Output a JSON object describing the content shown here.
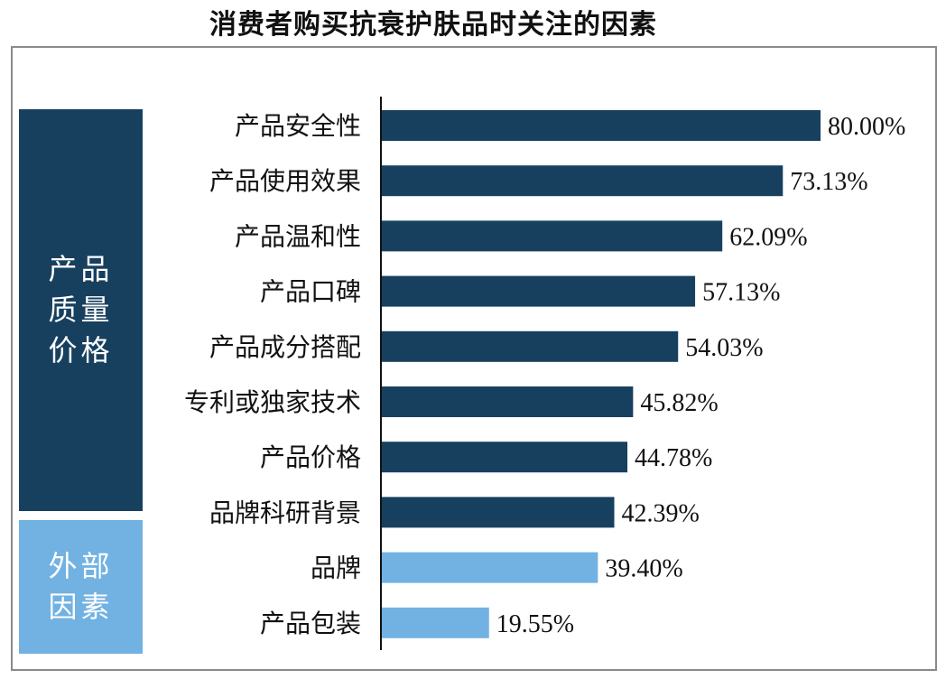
{
  "chart_data": {
    "type": "bar",
    "orientation": "horizontal",
    "title": "消费者购买抗衰护肤品时关注的因素",
    "categories": [
      "产品安全性",
      "产品使用效果",
      "产品温和性",
      "产品口碑",
      "产品成分搭配",
      "专利或独家技术",
      "产品价格",
      "品牌科研背景",
      "品牌",
      "产品包装"
    ],
    "values": [
      80.0,
      73.13,
      62.09,
      57.13,
      54.03,
      45.82,
      44.78,
      42.39,
      39.4,
      19.55
    ],
    "value_labels": [
      "80.00%",
      "73.13%",
      "62.09%",
      "57.13%",
      "54.03%",
      "45.82%",
      "44.78%",
      "42.39%",
      "39.40%",
      "19.55%"
    ],
    "xlim": [
      0,
      80
    ],
    "unit": "%",
    "groups": [
      {
        "lines": [
          "产品",
          "质量",
          "价格"
        ],
        "count": 8,
        "color": "#17405f"
      },
      {
        "lines": [
          "外部",
          "因素"
        ],
        "count": 2,
        "color": "#71b2e2"
      }
    ],
    "grid": false,
    "legend": "none"
  }
}
